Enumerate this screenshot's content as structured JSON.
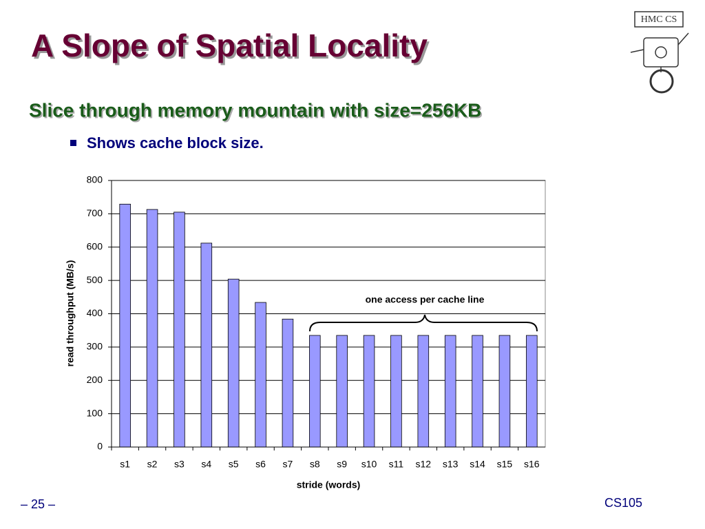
{
  "title": "A Slope of Spatial Locality",
  "subtitle": "Slice through memory mountain with size=256KB",
  "bullet": "Shows cache block size.",
  "logo": "HMC CS",
  "footer_left": "– 25 –",
  "footer_right": "CS105",
  "chart_data": {
    "type": "bar",
    "categories": [
      "s1",
      "s2",
      "s3",
      "s4",
      "s5",
      "s6",
      "s7",
      "s8",
      "s9",
      "s10",
      "s11",
      "s12",
      "s13",
      "s14",
      "s15",
      "s16"
    ],
    "values": [
      729,
      713,
      705,
      612,
      504,
      434,
      384,
      335,
      335,
      335,
      335,
      335,
      335,
      335,
      335,
      335
    ],
    "color": "#9999ff",
    "ylim": [
      0,
      800
    ],
    "yticks": [
      0,
      100,
      200,
      300,
      400,
      500,
      600,
      700,
      800
    ],
    "grid": true,
    "x_label": "stride (words)",
    "y_label": "read throughput (MB/s)",
    "annotation": "one access per cache line"
  }
}
